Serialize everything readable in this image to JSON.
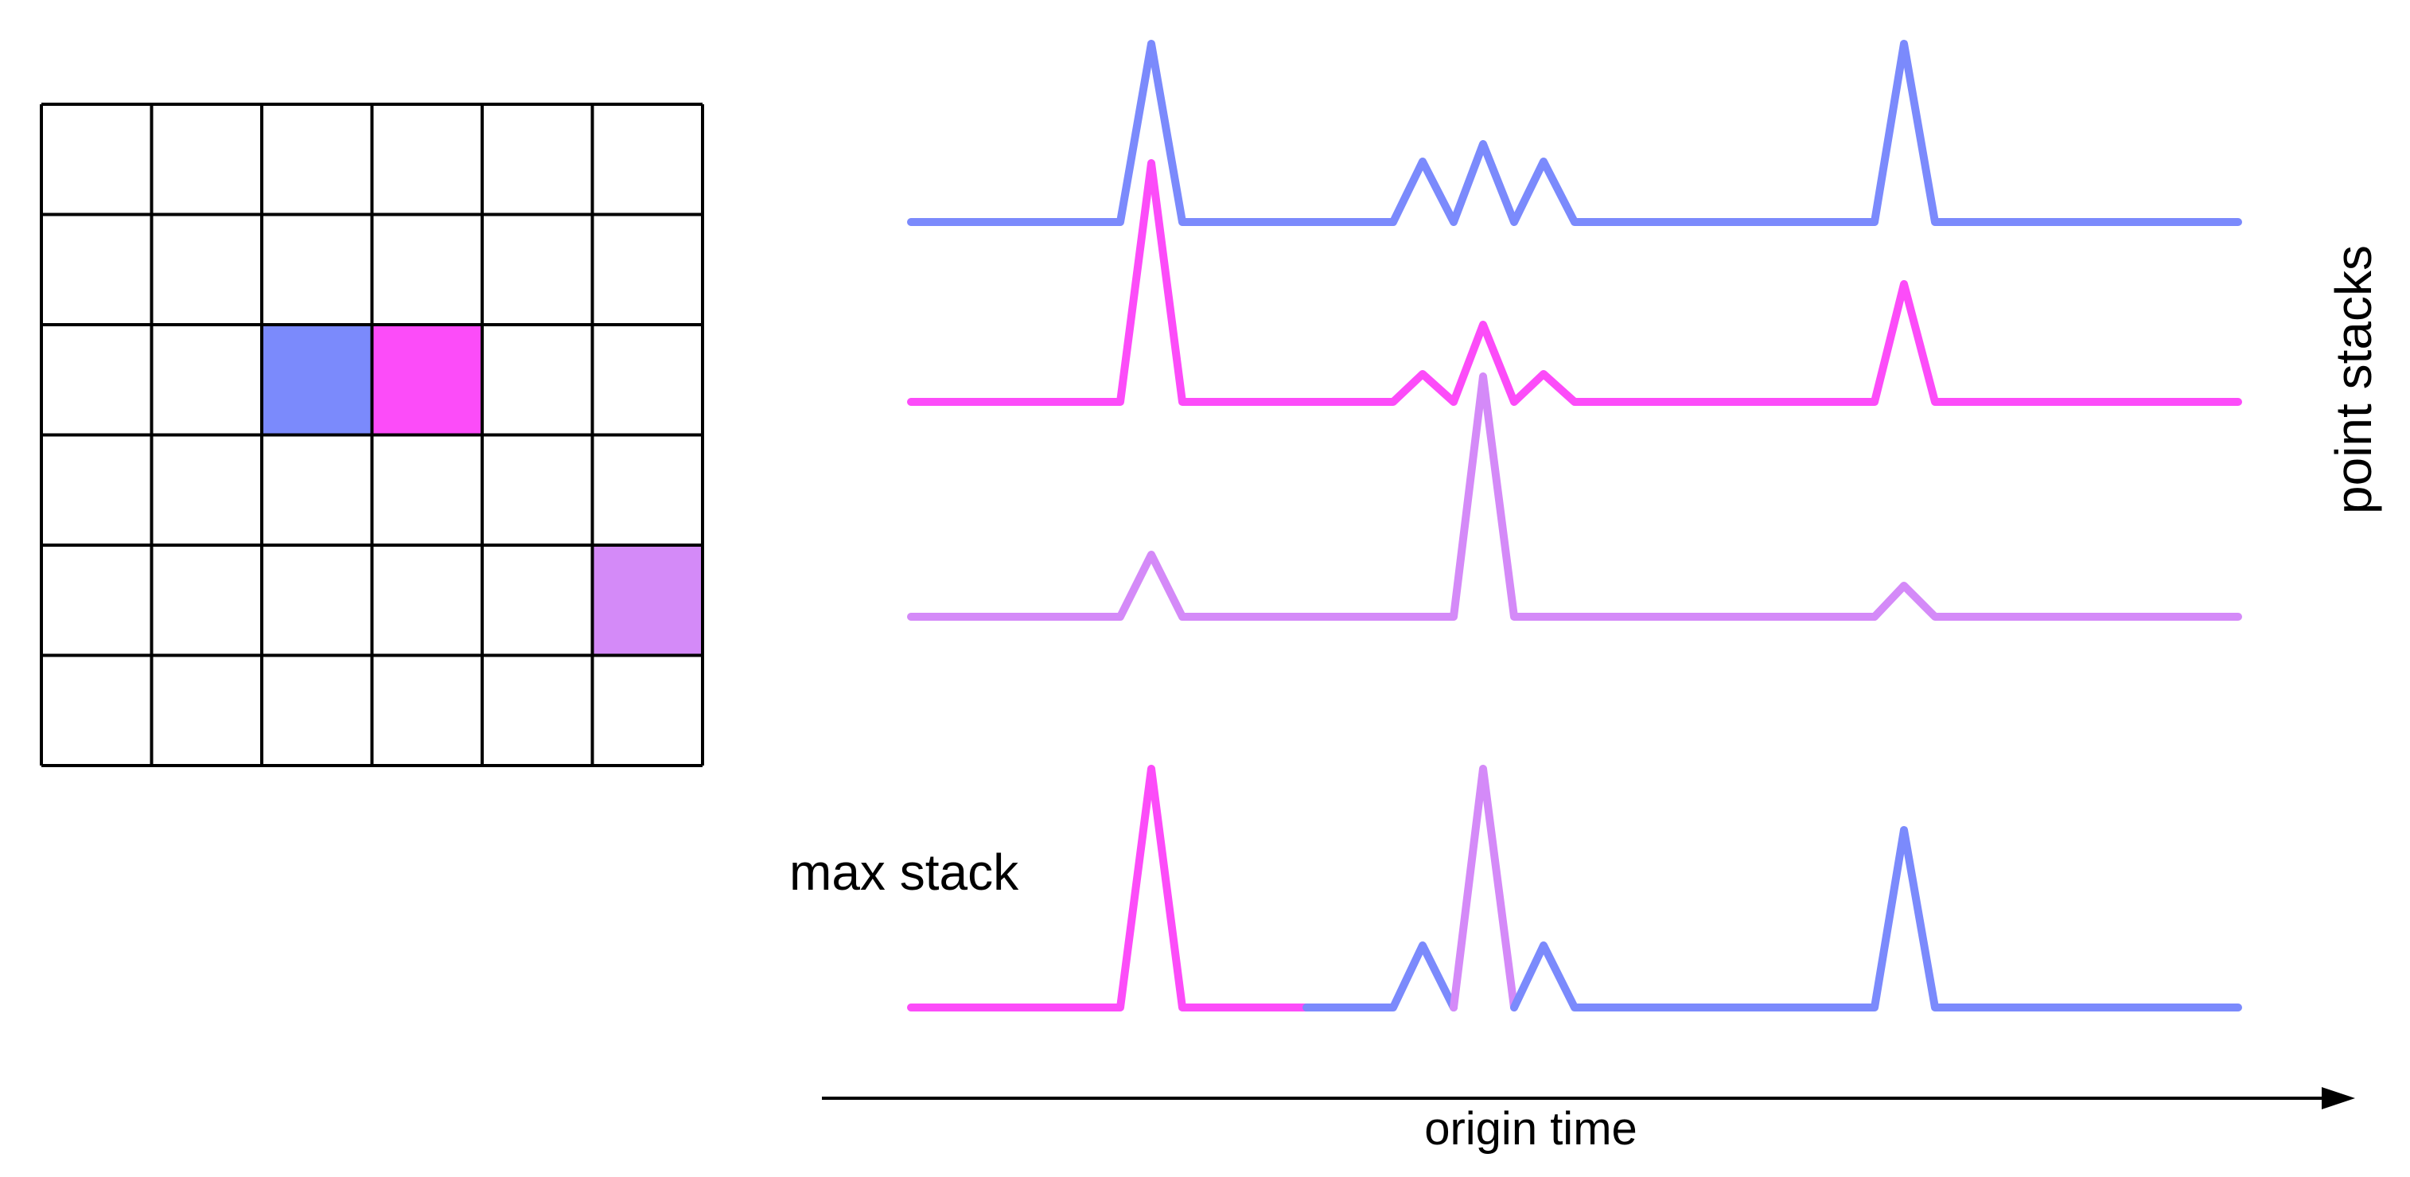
{
  "colors": {
    "blue": "#7b8afc",
    "magenta": "#fc4cf9",
    "purple": "#d48af8",
    "grid": "#000000",
    "axis": "#000000"
  },
  "grid": {
    "rows": 6,
    "cols": 6,
    "highlighted_cells": [
      {
        "row": 2,
        "col": 2,
        "color": "blue"
      },
      {
        "row": 2,
        "col": 3,
        "color": "magenta"
      },
      {
        "row": 4,
        "col": 5,
        "color": "purple"
      }
    ]
  },
  "labels": {
    "max_stack": "max stack",
    "point_stacks": "point stacks",
    "x_axis": "origin time"
  }
}
